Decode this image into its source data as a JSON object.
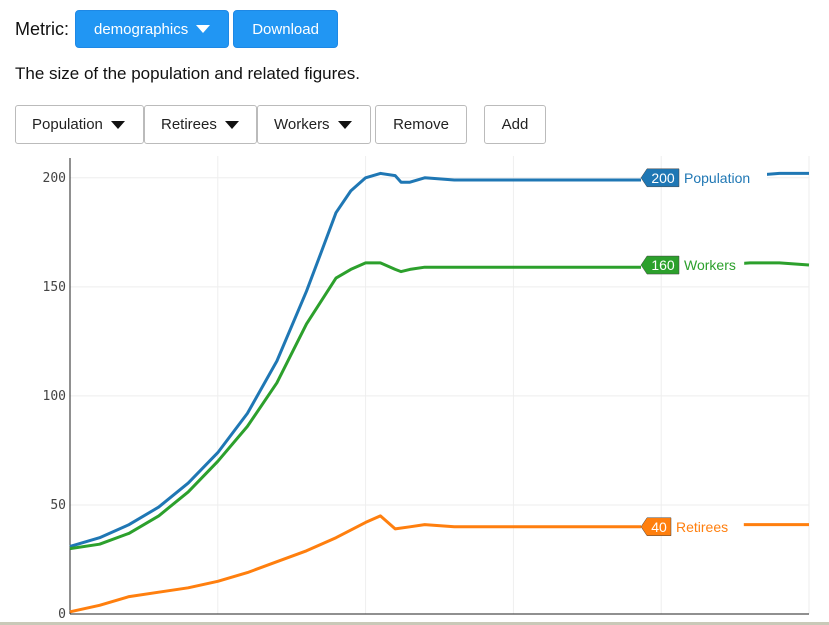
{
  "controls": {
    "metric_label": "Metric:",
    "metric_selected": "demographics",
    "download_label": "Download",
    "description": "The size of the population and related figures.",
    "series_buttons": [
      "Population",
      "Retirees",
      "Workers"
    ],
    "remove_label": "Remove",
    "add_label": "Add"
  },
  "chart_data": {
    "type": "line",
    "title": "",
    "xlabel": "",
    "ylabel": "",
    "ylim": [
      0,
      210
    ],
    "yticks": [
      0,
      50,
      100,
      150,
      200
    ],
    "xgrid_count": 5,
    "grid": true,
    "colors": {
      "population": "#1f77b4",
      "workers": "#2ca02c",
      "retirees": "#ff7f0e"
    },
    "series": [
      {
        "name": "Population",
        "color": "#1f77b4",
        "end_value": "200",
        "values": [
          [
            0,
            31
          ],
          [
            10,
            35
          ],
          [
            20,
            41
          ],
          [
            30,
            49
          ],
          [
            40,
            60
          ],
          [
            50,
            74
          ],
          [
            60,
            92
          ],
          [
            70,
            116
          ],
          [
            80,
            148
          ],
          [
            85,
            166
          ],
          [
            90,
            184
          ],
          [
            95,
            194
          ],
          [
            100,
            200
          ],
          [
            105,
            202
          ],
          [
            110,
            201
          ],
          [
            112,
            198
          ],
          [
            115,
            198
          ],
          [
            120,
            200
          ],
          [
            130,
            199
          ],
          [
            150,
            199
          ],
          [
            170,
            199
          ],
          [
            190,
            199
          ],
          [
            210,
            199
          ],
          [
            220,
            200
          ],
          [
            230,
            201
          ],
          [
            240,
            202
          ],
          [
            250,
            202
          ]
        ]
      },
      {
        "name": "Workers",
        "color": "#2ca02c",
        "end_value": "160",
        "values": [
          [
            0,
            30
          ],
          [
            10,
            32
          ],
          [
            20,
            37
          ],
          [
            30,
            45
          ],
          [
            40,
            56
          ],
          [
            50,
            70
          ],
          [
            60,
            86
          ],
          [
            70,
            106
          ],
          [
            80,
            133
          ],
          [
            90,
            154
          ],
          [
            95,
            158
          ],
          [
            100,
            161
          ],
          [
            105,
            161
          ],
          [
            110,
            158
          ],
          [
            112,
            157
          ],
          [
            115,
            158
          ],
          [
            120,
            159
          ],
          [
            130,
            159
          ],
          [
            150,
            159
          ],
          [
            170,
            159
          ],
          [
            190,
            159
          ],
          [
            210,
            159
          ],
          [
            220,
            160
          ],
          [
            230,
            161
          ],
          [
            240,
            161
          ],
          [
            250,
            160
          ]
        ]
      },
      {
        "name": "Retirees",
        "color": "#ff7f0e",
        "end_value": "40",
        "values": [
          [
            0,
            1
          ],
          [
            10,
            4
          ],
          [
            20,
            8
          ],
          [
            30,
            10
          ],
          [
            40,
            12
          ],
          [
            50,
            15
          ],
          [
            60,
            19
          ],
          [
            70,
            24
          ],
          [
            80,
            29
          ],
          [
            90,
            35
          ],
          [
            100,
            42
          ],
          [
            105,
            45
          ],
          [
            110,
            39
          ],
          [
            115,
            40
          ],
          [
            120,
            41
          ],
          [
            130,
            40
          ],
          [
            150,
            40
          ],
          [
            170,
            40
          ],
          [
            190,
            40
          ],
          [
            210,
            40
          ],
          [
            220,
            41
          ],
          [
            230,
            41
          ],
          [
            240,
            41
          ],
          [
            250,
            41
          ]
        ]
      }
    ]
  }
}
